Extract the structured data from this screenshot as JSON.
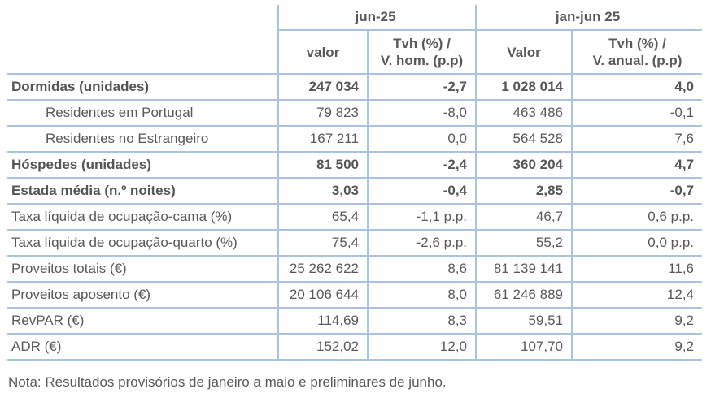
{
  "colors": {
    "line": "#a9c3e0",
    "text": "#595959"
  },
  "header": {
    "group_jun": "jun-25",
    "group_jan": "jan-jun 25",
    "sub_valor_jun": "valor",
    "sub_tvh_jun": "Tvh (%) /\nV. hom. (p.p)",
    "sub_valor_jan": "Valor",
    "sub_tvh_jan": "Tvh (%) /\nV. anual. (p.p)"
  },
  "rows": [
    {
      "label": "Dormidas (unidades)",
      "v1": "247 034",
      "t1": "-2,7",
      "v2": "1 028 014",
      "t2": "4,0"
    },
    {
      "label": "Residentes em Portugal",
      "v1": "79 823",
      "t1": "-8,0",
      "v2": "463 486",
      "t2": "-0,1"
    },
    {
      "label": "Residentes no Estrangeiro",
      "v1": "167 211",
      "t1": "0,0",
      "v2": "564 528",
      "t2": "7,6"
    },
    {
      "label": "Hóspedes (unidades)",
      "v1": "81 500",
      "t1": "-2,4",
      "v2": "360 204",
      "t2": "4,7"
    },
    {
      "label": "Estada média (n.º noites)",
      "v1": "3,03",
      "t1": "-0,4",
      "v2": "2,85",
      "t2": "-0,7"
    },
    {
      "label": "Taxa líquida de ocupação-cama (%)",
      "v1": "65,4",
      "t1": "-1,1 p.p.",
      "v2": "46,7",
      "t2": "0,6 p.p."
    },
    {
      "label": "Taxa líquida de ocupação-quarto (%)",
      "v1": "75,4",
      "t1": "-2,6 p.p.",
      "v2": "55,2",
      "t2": "0,0 p.p."
    },
    {
      "label": "Proveitos totais (€)",
      "v1": "25 262 622",
      "t1": "8,6",
      "v2": "81 139 141",
      "t2": "11,6"
    },
    {
      "label": "Proveitos aposento (€)",
      "v1": "20 106 644",
      "t1": "8,0",
      "v2": "61 246 889",
      "t2": "12,4"
    },
    {
      "label": "RevPAR (€)",
      "v1": "114,69",
      "t1": "8,3",
      "v2": "59,51",
      "t2": "9,2"
    },
    {
      "label": "ADR (€)",
      "v1": "152,02",
      "t1": "12,0",
      "v2": "107,70",
      "t2": "9,2"
    }
  ],
  "note": "Nota: Resultados provisórios de janeiro a maio e preliminares de junho."
}
